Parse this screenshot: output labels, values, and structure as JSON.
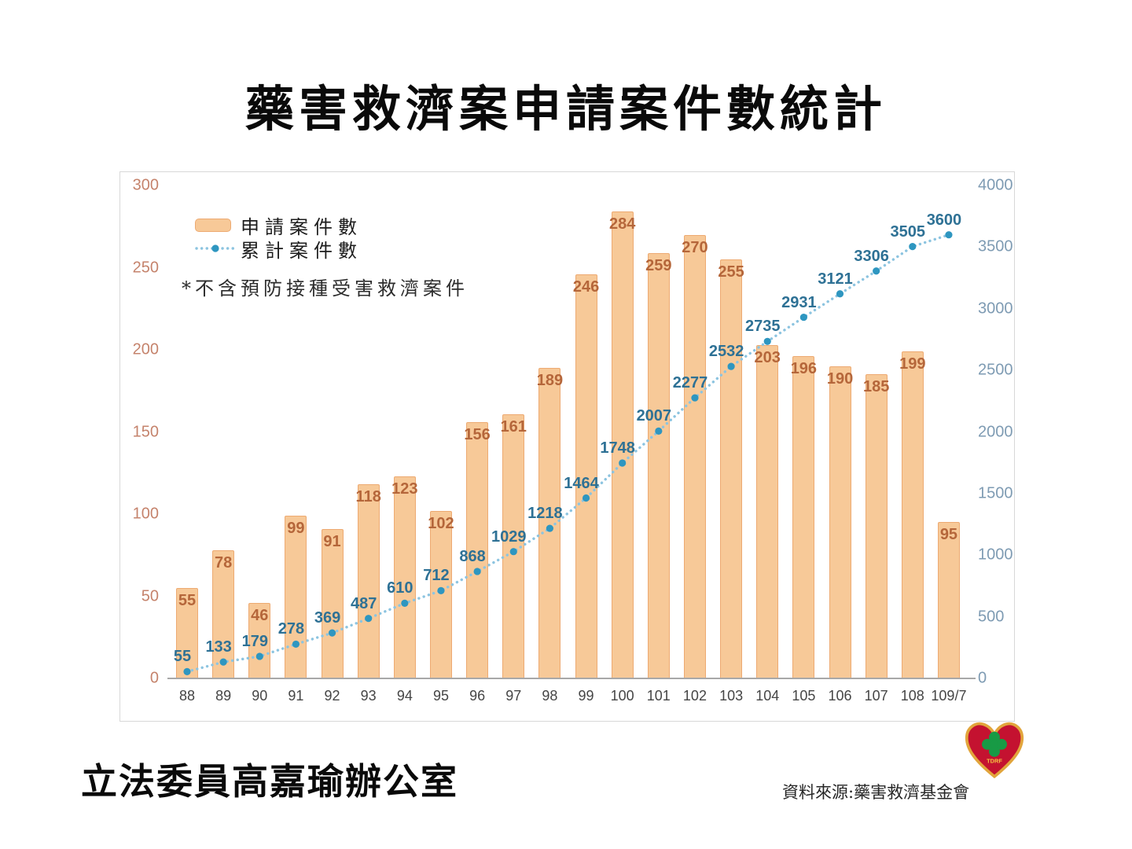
{
  "slide": {
    "title": "藥害救濟案申請案件數統計",
    "footer_left": "立法委員高嘉瑜辦公室",
    "source": "資料來源:藥害救濟基金會",
    "logo_text": "TDRF"
  },
  "chart_data": {
    "type": "combo",
    "categories": [
      "88",
      "89",
      "90",
      "91",
      "92",
      "93",
      "94",
      "95",
      "96",
      "97",
      "98",
      "99",
      "100",
      "101",
      "102",
      "103",
      "104",
      "105",
      "106",
      "107",
      "108",
      "109/7"
    ],
    "series": [
      {
        "name": "申請案件數",
        "type": "bar",
        "axis": "left",
        "values": [
          55,
          78,
          46,
          99,
          91,
          118,
          123,
          102,
          156,
          161,
          189,
          246,
          284,
          259,
          270,
          255,
          203,
          196,
          190,
          185,
          199,
          95
        ]
      },
      {
        "name": "累計案件數",
        "type": "line",
        "axis": "right",
        "values": [
          55,
          133,
          179,
          278,
          369,
          487,
          610,
          712,
          868,
          1029,
          1218,
          1464,
          1748,
          2007,
          2277,
          2532,
          2735,
          2931,
          3121,
          3306,
          3505,
          3600
        ]
      }
    ],
    "left_axis": {
      "range": [
        0,
        300
      ],
      "ticks": [
        0,
        50,
        100,
        150,
        200,
        250,
        300
      ]
    },
    "right_axis": {
      "range": [
        0,
        4000
      ],
      "ticks": [
        0,
        500,
        1000,
        1500,
        2000,
        2500,
        3000,
        3500,
        4000
      ]
    },
    "note": "*不含預防接種受害救濟案件",
    "legend_position": "top-left",
    "grid": false
  },
  "colors": {
    "barFill": "#f7c998",
    "barBorder": "#edaa72",
    "barLabel": "#b5663a",
    "leftAxis": "#c5836c",
    "rightAxis": "#7e9bb3",
    "cumLabel": "#2e7195",
    "lineDot": "#8cc4e0",
    "marker": "#2e96c0",
    "logoRed": "#c41230",
    "logoGold": "#e2a53c",
    "logoGreen": "#189a45"
  }
}
